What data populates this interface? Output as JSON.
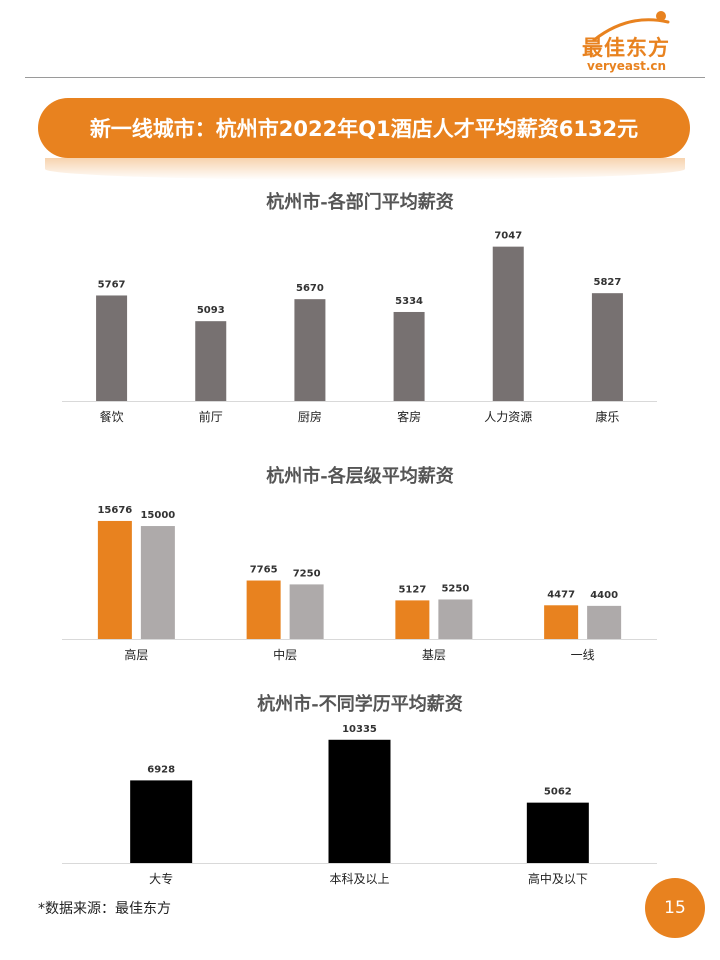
{
  "header": {
    "logo_cn": "最佳东方",
    "logo_en": "veryeast.cn",
    "title": "新一线城市：杭州市2022年Q1酒店人才平均薪资6132元"
  },
  "colors": {
    "accent": "#e8821f",
    "bar_gray": "#777171",
    "bar_light_gray": "#aeaaaa",
    "bar_black": "#000000"
  },
  "chart_data": [
    {
      "type": "bar",
      "title": "杭州市-各部门平均薪资",
      "categories": [
        "餐饮",
        "前厅",
        "厨房",
        "客房",
        "人力资源",
        "康乐"
      ],
      "series": [
        {
          "values": [
            5767,
            5093,
            5670,
            5334,
            7047,
            5827
          ],
          "color": "#777171"
        }
      ],
      "ylim": [
        3000,
        7300
      ],
      "grid": false,
      "data_labels": true
    },
    {
      "type": "bar",
      "title": "杭州市-各层级平均薪资",
      "categories": [
        "高层",
        "中层",
        "基层",
        "一线"
      ],
      "series": [
        {
          "values": [
            15676,
            7765,
            5127,
            4477
          ],
          "color": "#e8821f"
        },
        {
          "values": [
            15000,
            7250,
            5250,
            4400
          ],
          "color": "#aeaaaa"
        }
      ],
      "ylim": [
        0,
        16200
      ],
      "grid": false,
      "data_labels": true
    },
    {
      "type": "bar",
      "title": "杭州市-不同学历平均薪资",
      "categories": [
        "大专",
        "本科及以上",
        "高中及以下"
      ],
      "series": [
        {
          "values": [
            6928,
            10335,
            5062
          ],
          "color": "#000000"
        }
      ],
      "ylim": [
        0,
        10400
      ],
      "grid": false,
      "data_labels": true
    }
  ],
  "footer": {
    "source": "*数据来源：最佳东方",
    "page_number": "15"
  }
}
